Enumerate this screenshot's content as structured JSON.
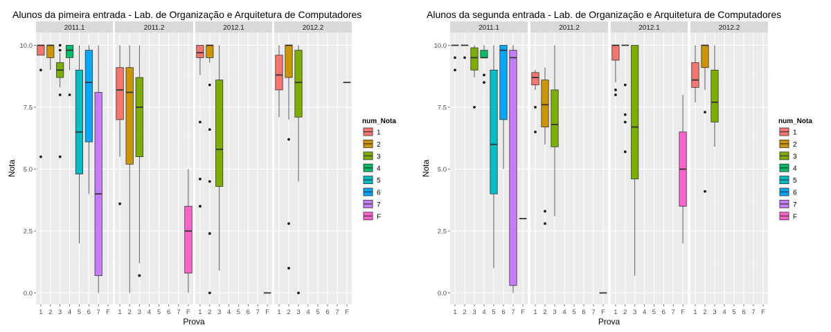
{
  "chart_data": [
    {
      "type": "boxplot",
      "title": "Alunos da pimeira entrada -  Lab. de Organização e Arquitetura de Computadores",
      "xlabel": "Prova",
      "ylabel": "Nota",
      "ylim": [
        0,
        10
      ],
      "y_ticks": [
        "0.0",
        "2.5",
        "5.0",
        "7.5",
        "10.0"
      ],
      "x_ticks": [
        "1",
        "2",
        "3",
        "4",
        "5",
        "6",
        "7",
        "F"
      ],
      "legend": {
        "title": "num_Nota",
        "position": "right",
        "entries": [
          "1",
          "2",
          "3",
          "4",
          "5",
          "6",
          "7",
          "F"
        ]
      },
      "grid": true,
      "facets": [
        {
          "label": "2011.1",
          "boxes": [
            {
              "x": "1",
              "q1": 9.6,
              "median": 10.0,
              "q3": 10.0,
              "low": 9.6,
              "high": 10.0,
              "outliers": [
                9.0,
                5.5
              ]
            },
            {
              "x": "2",
              "q1": 9.5,
              "median": 10.0,
              "q3": 10.0,
              "low": 9.0,
              "high": 10.0,
              "outliers": []
            },
            {
              "x": "3",
              "q1": 8.7,
              "median": 9.0,
              "q3": 9.3,
              "low": 8.3,
              "high": 9.7,
              "outliers": [
                10.0,
                9.8,
                8.0,
                5.5
              ]
            },
            {
              "x": "4",
              "q1": 9.5,
              "median": 9.8,
              "q3": 10.0,
              "low": 9.0,
              "high": 10.0,
              "outliers": [
                8.0
              ]
            },
            {
              "x": "5",
              "q1": 4.8,
              "median": 6.5,
              "q3": 9.0,
              "low": 2.0,
              "high": 10.0,
              "outliers": []
            },
            {
              "x": "6",
              "q1": 6.1,
              "median": 8.5,
              "q3": 9.8,
              "low": 4.0,
              "high": 10.0,
              "outliers": []
            },
            {
              "x": "7",
              "q1": 0.7,
              "median": 4.0,
              "q3": 8.1,
              "low": 0.0,
              "high": 10.0,
              "outliers": []
            }
          ]
        },
        {
          "label": "2011.2",
          "boxes": [
            {
              "x": "1",
              "q1": 7.0,
              "median": 8.2,
              "q3": 9.1,
              "low": 5.5,
              "high": 10.0,
              "outliers": [
                3.6
              ]
            },
            {
              "x": "2",
              "q1": 5.2,
              "median": 8.1,
              "q3": 9.1,
              "low": 0.0,
              "high": 10.0,
              "outliers": []
            },
            {
              "x": "3",
              "q1": 5.5,
              "median": 7.5,
              "q3": 8.7,
              "low": 1.2,
              "high": 10.0,
              "outliers": [
                0.7
              ]
            },
            {
              "x": "F",
              "q1": 0.8,
              "median": 2.5,
              "q3": 3.5,
              "low": 0.0,
              "high": 5.0,
              "outliers": []
            }
          ]
        },
        {
          "label": "2012.1",
          "boxes": [
            {
              "x": "1",
              "q1": 9.5,
              "median": 9.7,
              "q3": 10.0,
              "low": 8.8,
              "high": 10.0,
              "outliers": [
                6.9,
                4.6,
                3.5
              ]
            },
            {
              "x": "2",
              "q1": 9.5,
              "median": 10.0,
              "q3": 10.0,
              "low": 9.3,
              "high": 10.0,
              "outliers": [
                8.4,
                6.6,
                4.5,
                2.4,
                0.0
              ]
            },
            {
              "x": "3",
              "q1": 4.3,
              "median": 5.8,
              "q3": 8.6,
              "low": 0.9,
              "high": 10.0,
              "outliers": []
            },
            {
              "x": "F",
              "q1": 0.0,
              "median": 0.0,
              "q3": 0.0,
              "low": 0.0,
              "high": 0.0,
              "outliers": []
            }
          ]
        },
        {
          "label": "2012.2",
          "boxes": [
            {
              "x": "1",
              "q1": 8.2,
              "median": 8.8,
              "q3": 9.6,
              "low": 7.1,
              "high": 10.0,
              "outliers": []
            },
            {
              "x": "2",
              "q1": 8.7,
              "median": 10.0,
              "q3": 10.0,
              "low": 7.0,
              "high": 10.0,
              "outliers": [
                6.2,
                2.8,
                1.0
              ]
            },
            {
              "x": "3",
              "q1": 7.1,
              "median": 8.5,
              "q3": 9.8,
              "low": 4.5,
              "high": 10.0,
              "outliers": [
                0.0
              ]
            },
            {
              "x": "F",
              "q1": 8.5,
              "median": 8.5,
              "q3": 8.5,
              "low": 8.5,
              "high": 8.5,
              "outliers": []
            }
          ]
        }
      ]
    },
    {
      "type": "boxplot",
      "title": "Alunos da segunda entrada -  Lab. de Organização e Arquitetura de Computadores",
      "xlabel": "Prova",
      "ylabel": "Nota",
      "ylim": [
        0,
        10
      ],
      "y_ticks": [
        "0.0",
        "2.5",
        "5.0",
        "7.5",
        "10.0"
      ],
      "x_ticks": [
        "1",
        "2",
        "3",
        "4",
        "5",
        "6",
        "7",
        "F"
      ],
      "legend": {
        "title": "num_Nota",
        "position": "right",
        "entries": [
          "1",
          "2",
          "3",
          "4",
          "5",
          "6",
          "7",
          "F"
        ]
      },
      "grid": true,
      "facets": [
        {
          "label": "2011.1",
          "boxes": [
            {
              "x": "1",
              "q1": 10.0,
              "median": 10.0,
              "q3": 10.0,
              "low": 10.0,
              "high": 10.0,
              "outliers": [
                9.5,
                9.0
              ]
            },
            {
              "x": "2",
              "q1": 10.0,
              "median": 10.0,
              "q3": 10.0,
              "low": 10.0,
              "high": 10.0,
              "outliers": [
                9.5
              ]
            },
            {
              "x": "3",
              "q1": 9.0,
              "median": 9.5,
              "q3": 9.9,
              "low": 8.7,
              "high": 10.0,
              "outliers": [
                7.5
              ]
            },
            {
              "x": "4",
              "q1": 9.5,
              "median": 9.5,
              "q3": 9.8,
              "low": 9.5,
              "high": 10.0,
              "outliers": [
                8.8,
                8.5
              ]
            },
            {
              "x": "5",
              "q1": 4.0,
              "median": 6.0,
              "q3": 9.0,
              "low": 1.0,
              "high": 10.0,
              "outliers": []
            },
            {
              "x": "6",
              "q1": 7.0,
              "median": 9.8,
              "q3": 10.0,
              "low": 5.0,
              "high": 10.0,
              "outliers": []
            },
            {
              "x": "7",
              "q1": 0.3,
              "median": 9.5,
              "q3": 9.8,
              "low": 0.0,
              "high": 10.0,
              "outliers": []
            },
            {
              "x": "F",
              "q1": 3.0,
              "median": 3.0,
              "q3": 3.0,
              "low": 3.0,
              "high": 3.0,
              "outliers": []
            }
          ]
        },
        {
          "label": "2011.2",
          "boxes": [
            {
              "x": "1",
              "q1": 8.4,
              "median": 8.7,
              "q3": 8.9,
              "low": 8.2,
              "high": 9.0,
              "outliers": [
                7.5,
                6.5
              ]
            },
            {
              "x": "2",
              "q1": 6.7,
              "median": 7.6,
              "q3": 8.6,
              "low": 6.0,
              "high": 9.1,
              "outliers": [
                3.3,
                2.8
              ]
            },
            {
              "x": "3",
              "q1": 5.9,
              "median": 6.8,
              "q3": 8.2,
              "low": 3.1,
              "high": 10.0,
              "outliers": []
            },
            {
              "x": "F",
              "q1": 0.0,
              "median": 0.0,
              "q3": 0.0,
              "low": 0.0,
              "high": 0.0,
              "outliers": []
            }
          ]
        },
        {
          "label": "2012.1",
          "boxes": [
            {
              "x": "1",
              "q1": 9.4,
              "median": 10.0,
              "q3": 10.0,
              "low": 8.5,
              "high": 10.0,
              "outliers": [
                8.2,
                8.0
              ]
            },
            {
              "x": "2",
              "q1": 10.0,
              "median": 10.0,
              "q3": 10.0,
              "low": 10.0,
              "high": 10.0,
              "outliers": [
                8.4,
                7.2,
                6.9,
                5.7
              ]
            },
            {
              "x": "3",
              "q1": 4.6,
              "median": 6.7,
              "q3": 10.0,
              "low": 0.7,
              "high": 10.0,
              "outliers": []
            },
            {
              "x": "F",
              "q1": 3.5,
              "median": 5.0,
              "q3": 6.5,
              "low": 2.0,
              "high": 8.0,
              "outliers": []
            }
          ]
        },
        {
          "label": "2012.2",
          "boxes": [
            {
              "x": "1",
              "q1": 8.3,
              "median": 8.6,
              "q3": 9.3,
              "low": 7.7,
              "high": 10.0,
              "outliers": []
            },
            {
              "x": "2",
              "q1": 9.1,
              "median": 10.0,
              "q3": 10.0,
              "low": 8.2,
              "high": 10.0,
              "outliers": [
                7.3,
                4.1
              ]
            },
            {
              "x": "3",
              "q1": 6.9,
              "median": 7.7,
              "q3": 9.0,
              "low": 5.9,
              "high": 10.0,
              "outliers": []
            }
          ]
        }
      ]
    }
  ],
  "colors": {
    "1": "#F8766D",
    "2": "#CD9600",
    "3": "#7CAE00",
    "4": "#00BE67",
    "5": "#00BFC4",
    "6": "#00A9FF",
    "7": "#C77CFF",
    "F": "#FF61CC",
    "panel_bg": "#EBEBEB",
    "strip_bg": "#D9D9D9",
    "grid_major": "#FFFFFF",
    "grid_minor": "#F5F5F5"
  }
}
